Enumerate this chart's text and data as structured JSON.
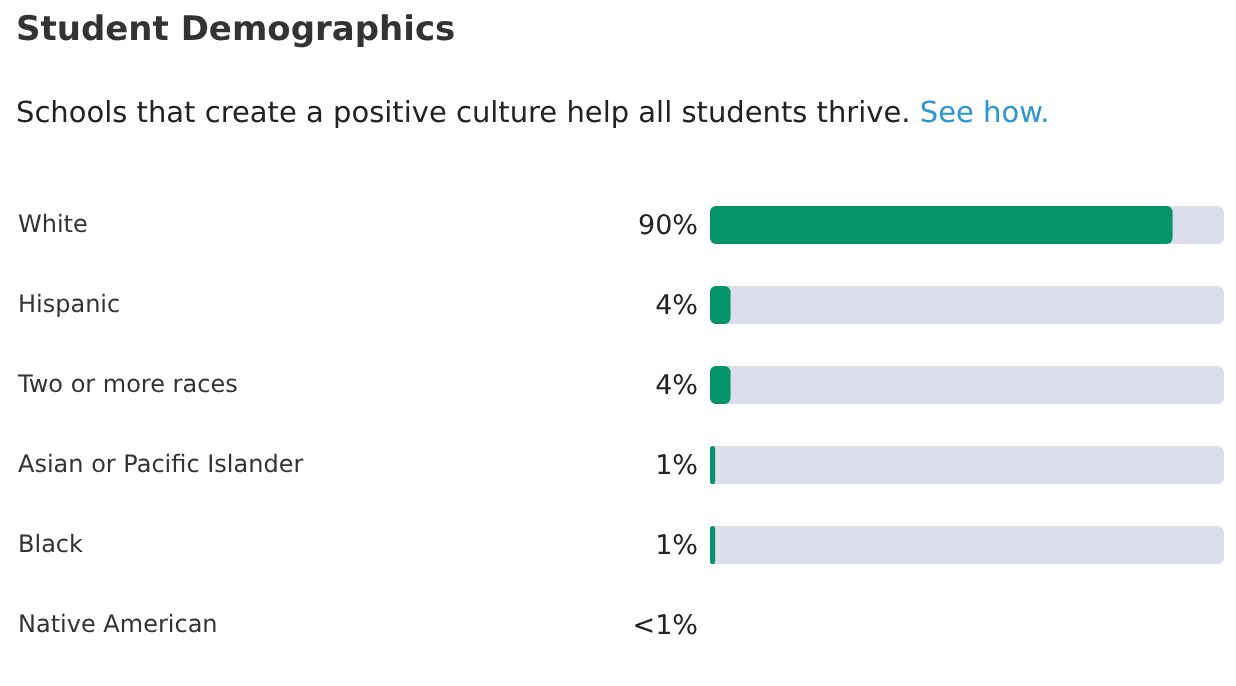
{
  "chart_data": {
    "type": "bar",
    "orientation": "horizontal",
    "title": "Student Demographics",
    "subtitle": "Schools that create a positive culture help all students thrive.",
    "annotations": [
      "See how."
    ],
    "categories": [
      "White",
      "Hispanic",
      "Two or more races",
      "Asian or Pacific Islander",
      "Black",
      "Native American"
    ],
    "values": [
      90,
      4,
      4,
      1,
      1,
      0
    ],
    "value_labels": [
      "90%",
      "4%",
      "4%",
      "1%",
      "1%",
      "<1%"
    ],
    "color": "#05946a",
    "xlim": [
      0,
      100
    ],
    "tick_labels": "y"
  }
}
